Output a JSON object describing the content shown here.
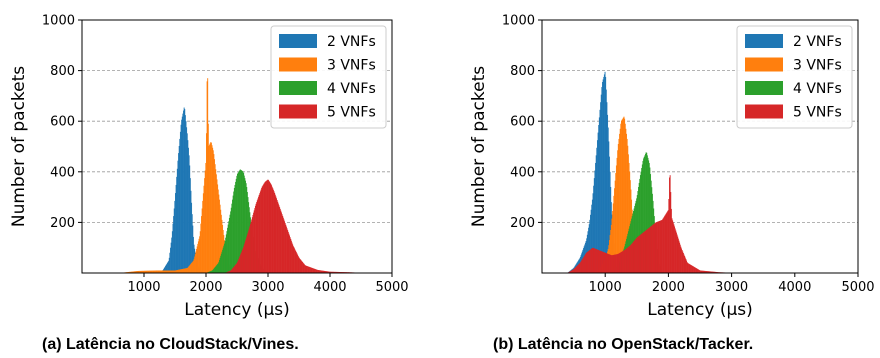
{
  "captions": {
    "a": "(a) Latência no CloudStack/Vines.",
    "b": "(b) Latência no OpenStack/Tacker."
  },
  "chart_data": [
    {
      "type": "histogram",
      "panel": "a",
      "xlabel": "Latency (µs)",
      "ylabel": "Number of packets",
      "xlim": [
        0,
        5000
      ],
      "ylim": [
        0,
        1000
      ],
      "xticks": [
        1000,
        2000,
        3000,
        4000,
        5000
      ],
      "yticks": [
        200,
        400,
        600,
        800,
        1000
      ],
      "grid": "horizontal dashed",
      "legend_position": "top-right",
      "series": [
        {
          "name": "2 VNFs",
          "color": "#1f77b4",
          "x": [
            1200,
            1300,
            1400,
            1450,
            1500,
            1550,
            1600,
            1650,
            1700,
            1730,
            1760,
            1800,
            1850,
            1900,
            1950
          ],
          "y": [
            0,
            10,
            50,
            150,
            300,
            460,
            600,
            660,
            540,
            450,
            300,
            120,
            40,
            10,
            0
          ]
        },
        {
          "name": "3 VNFs",
          "color": "#ff7f0e",
          "x": [
            600,
            900,
            1200,
            1500,
            1700,
            1800,
            1900,
            1950,
            2000,
            2020,
            2040,
            2080,
            2120,
            2150,
            2200,
            2250,
            2300,
            2350,
            2400,
            2500
          ],
          "y": [
            0,
            8,
            10,
            10,
            20,
            50,
            150,
            300,
            450,
            860,
            500,
            520,
            480,
            420,
            320,
            220,
            120,
            50,
            15,
            0
          ]
        },
        {
          "name": "4 VNFs",
          "color": "#2ca02c",
          "x": [
            2000,
            2100,
            2200,
            2300,
            2400,
            2450,
            2500,
            2550,
            2600,
            2650,
            2700,
            2750,
            2800,
            2900,
            3000
          ],
          "y": [
            0,
            10,
            40,
            120,
            250,
            330,
            390,
            410,
            400,
            350,
            250,
            150,
            80,
            20,
            0
          ]
        },
        {
          "name": "5 VNFs",
          "color": "#d62728",
          "x": [
            2300,
            2400,
            2500,
            2600,
            2700,
            2800,
            2900,
            2950,
            3000,
            3050,
            3100,
            3200,
            3300,
            3400,
            3500,
            3600,
            3800,
            4000,
            4300,
            4600
          ],
          "y": [
            0,
            10,
            40,
            100,
            180,
            270,
            340,
            360,
            370,
            350,
            320,
            250,
            180,
            110,
            60,
            30,
            12,
            5,
            3,
            0
          ]
        }
      ]
    },
    {
      "type": "histogram",
      "panel": "b",
      "xlabel": "Latency (µs)",
      "ylabel": "Number of packets",
      "xlim": [
        0,
        5000
      ],
      "ylim": [
        0,
        1000
      ],
      "xticks": [
        1000,
        2000,
        3000,
        4000,
        5000
      ],
      "yticks": [
        200,
        400,
        600,
        800,
        1000
      ],
      "grid": "horizontal dashed",
      "legend_position": "top-right",
      "series": [
        {
          "name": "2 VNFs",
          "color": "#1f77b4",
          "x": [
            400,
            500,
            600,
            700,
            750,
            800,
            850,
            900,
            950,
            1000,
            1050,
            1100,
            1150,
            1200
          ],
          "y": [
            0,
            20,
            60,
            130,
            200,
            300,
            450,
            600,
            750,
            800,
            550,
            250,
            60,
            0
          ]
        },
        {
          "name": "3 VNFs",
          "color": "#ff7f0e",
          "x": [
            800,
            900,
            1000,
            1050,
            1100,
            1150,
            1200,
            1250,
            1300,
            1350,
            1400,
            1450,
            1500,
            1550
          ],
          "y": [
            0,
            15,
            50,
            100,
            200,
            350,
            500,
            600,
            620,
            520,
            350,
            150,
            40,
            0
          ]
        },
        {
          "name": "4 VNFs",
          "color": "#2ca02c",
          "x": [
            1100,
            1200,
            1300,
            1400,
            1500,
            1550,
            1600,
            1650,
            1700,
            1750,
            1800,
            1850,
            1900
          ],
          "y": [
            0,
            30,
            100,
            200,
            300,
            380,
            450,
            480,
            430,
            300,
            150,
            40,
            0
          ]
        },
        {
          "name": "5 VNFs",
          "color": "#d62728",
          "x": [
            400,
            500,
            600,
            700,
            800,
            900,
            1000,
            1100,
            1200,
            1300,
            1400,
            1500,
            1600,
            1700,
            1800,
            1900,
            1950,
            2000,
            2020,
            2050,
            2100,
            2200,
            2300,
            2500,
            2800,
            3100
          ],
          "y": [
            0,
            15,
            40,
            80,
            100,
            90,
            80,
            70,
            75,
            90,
            110,
            140,
            160,
            180,
            200,
            210,
            230,
            250,
            420,
            220,
            180,
            100,
            40,
            10,
            3,
            0
          ]
        }
      ]
    }
  ]
}
